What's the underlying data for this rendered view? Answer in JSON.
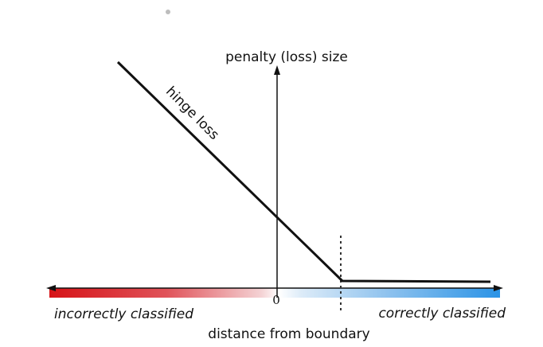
{
  "diagram": {
    "y_axis_label": "penalty (loss) size",
    "curve_label": "hinge loss",
    "origin_label": "0",
    "x_axis_label": "distance from boundary",
    "left_region_label": "incorrectly classified",
    "right_region_label": "correctly classified",
    "colors": {
      "incorrect": "#d61317",
      "correct": "#2a93e6",
      "line": "#111111",
      "dot": "#bdbdbd"
    }
  }
}
